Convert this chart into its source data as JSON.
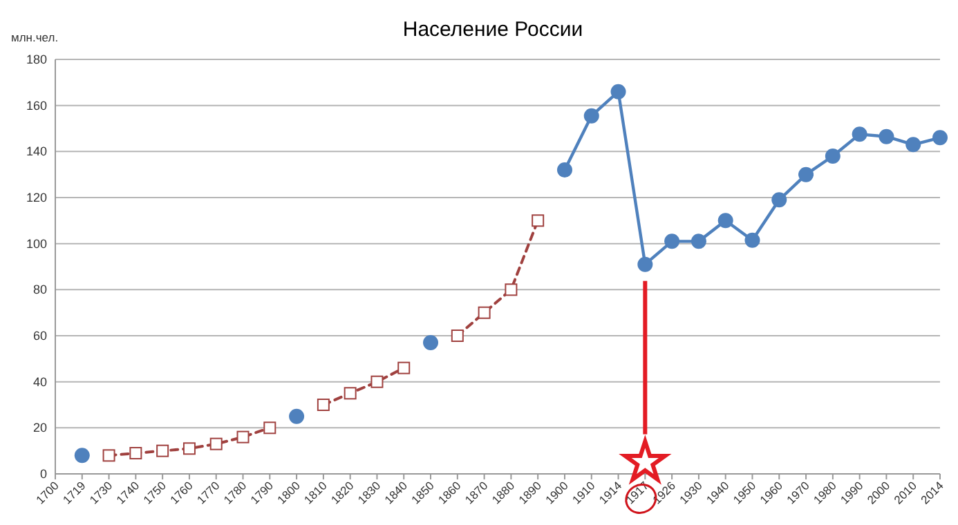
{
  "chart_data": {
    "type": "line",
    "title": "Население России",
    "ylabel": "млн.чел.",
    "categories": [
      "1700",
      "1719",
      "1730",
      "1740",
      "1750",
      "1760",
      "1770",
      "1780",
      "1790",
      "1800",
      "1810",
      "1820",
      "1830",
      "1840",
      "1850",
      "1860",
      "1870",
      "1880",
      "1890",
      "1900",
      "1910",
      "1914",
      "1917",
      "1926",
      "1930",
      "1940",
      "1950",
      "1960",
      "1970",
      "1980",
      "1990",
      "2000",
      "2010",
      "2014"
    ],
    "series": [
      {
        "color": "#4f81bd",
        "marker": "circle",
        "line_style": "solid",
        "values": [
          null,
          8,
          null,
          null,
          null,
          null,
          null,
          null,
          null,
          25,
          null,
          null,
          null,
          null,
          57,
          null,
          null,
          null,
          null,
          132,
          155.5,
          166,
          91,
          101,
          101,
          110,
          101.5,
          119,
          130,
          138,
          147.5,
          146.5,
          143,
          146
        ]
      },
      {
        "color": "#a0413f",
        "marker": "square",
        "line_style": "dashed",
        "values": [
          null,
          null,
          8,
          9,
          10,
          11,
          13,
          16,
          20,
          null,
          30,
          35,
          40,
          46,
          null,
          60,
          70,
          80,
          110,
          null,
          null,
          null,
          null,
          null,
          null,
          null,
          null,
          null,
          null,
          null,
          null,
          null,
          null,
          null
        ]
      }
    ],
    "ylim": [
      0,
      180
    ],
    "yticks": [
      0,
      20,
      40,
      60,
      80,
      100,
      120,
      140,
      160,
      180
    ],
    "grid": "y"
  }
}
